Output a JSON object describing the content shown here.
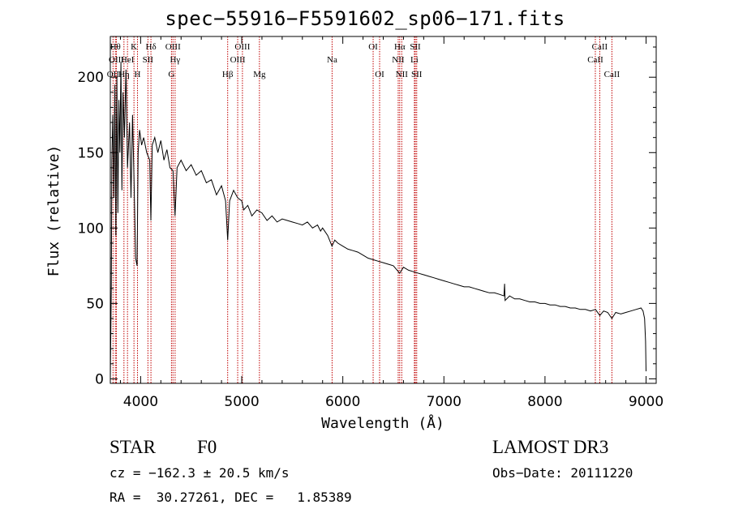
{
  "chart_data": {
    "type": "line",
    "title": "spec−55916−F5591602_sp06−171.fits",
    "xlabel": "Wavelength (Å)",
    "ylabel": "Flux (relative)",
    "xlim": [
      3700,
      9100
    ],
    "ylim": [
      -3,
      227
    ],
    "xticks": [
      4000,
      5000,
      6000,
      7000,
      8000,
      9000
    ],
    "yticks": [
      0,
      50,
      100,
      150,
      200
    ],
    "series": [
      {
        "name": "flux",
        "color": "#000000",
        "points": [
          [
            3700,
            0
          ],
          [
            3705,
            30
          ],
          [
            3710,
            60
          ],
          [
            3715,
            145
          ],
          [
            3725,
            175
          ],
          [
            3735,
            120
          ],
          [
            3745,
            195
          ],
          [
            3755,
            95
          ],
          [
            3765,
            200
          ],
          [
            3775,
            110
          ],
          [
            3785,
            185
          ],
          [
            3795,
            150
          ],
          [
            3805,
            210
          ],
          [
            3815,
            125
          ],
          [
            3825,
            190
          ],
          [
            3840,
            160
          ],
          [
            3855,
            205
          ],
          [
            3870,
            140
          ],
          [
            3890,
            170
          ],
          [
            3905,
            120
          ],
          [
            3920,
            175
          ],
          [
            3935,
            130
          ],
          [
            3950,
            80
          ],
          [
            3965,
            75
          ],
          [
            3975,
            150
          ],
          [
            3990,
            165
          ],
          [
            4010,
            155
          ],
          [
            4030,
            160
          ],
          [
            4060,
            150
          ],
          [
            4090,
            145
          ],
          [
            4101,
            105
          ],
          [
            4115,
            155
          ],
          [
            4140,
            160
          ],
          [
            4170,
            150
          ],
          [
            4200,
            158
          ],
          [
            4230,
            145
          ],
          [
            4260,
            152
          ],
          [
            4290,
            140
          ],
          [
            4320,
            138
          ],
          [
            4340,
            108
          ],
          [
            4360,
            140
          ],
          [
            4400,
            145
          ],
          [
            4450,
            138
          ],
          [
            4500,
            142
          ],
          [
            4550,
            135
          ],
          [
            4600,
            138
          ],
          [
            4650,
            130
          ],
          [
            4700,
            132
          ],
          [
            4750,
            122
          ],
          [
            4800,
            128
          ],
          [
            4840,
            118
          ],
          [
            4861,
            92
          ],
          [
            4880,
            118
          ],
          [
            4920,
            125
          ],
          [
            4960,
            120
          ],
          [
            5000,
            118
          ],
          [
            5020,
            112
          ],
          [
            5060,
            115
          ],
          [
            5100,
            108
          ],
          [
            5150,
            112
          ],
          [
            5200,
            110
          ],
          [
            5250,
            105
          ],
          [
            5300,
            108
          ],
          [
            5350,
            104
          ],
          [
            5400,
            106
          ],
          [
            5450,
            105
          ],
          [
            5500,
            104
          ],
          [
            5550,
            103
          ],
          [
            5600,
            102
          ],
          [
            5650,
            104
          ],
          [
            5700,
            100
          ],
          [
            5750,
            102
          ],
          [
            5780,
            98
          ],
          [
            5800,
            100
          ],
          [
            5850,
            95
          ],
          [
            5893,
            88
          ],
          [
            5920,
            92
          ],
          [
            5950,
            90
          ],
          [
            6000,
            88
          ],
          [
            6050,
            86
          ],
          [
            6100,
            85
          ],
          [
            6150,
            84
          ],
          [
            6200,
            82
          ],
          [
            6250,
            80
          ],
          [
            6300,
            79
          ],
          [
            6350,
            78
          ],
          [
            6400,
            77
          ],
          [
            6450,
            76
          ],
          [
            6500,
            75
          ],
          [
            6563,
            70
          ],
          [
            6600,
            74
          ],
          [
            6650,
            72
          ],
          [
            6700,
            71
          ],
          [
            6750,
            70
          ],
          [
            6800,
            69
          ],
          [
            6850,
            68
          ],
          [
            6900,
            67
          ],
          [
            6950,
            66
          ],
          [
            7000,
            65
          ],
          [
            7050,
            64
          ],
          [
            7100,
            63
          ],
          [
            7150,
            62
          ],
          [
            7200,
            61
          ],
          [
            7250,
            61
          ],
          [
            7300,
            60
          ],
          [
            7350,
            59
          ],
          [
            7400,
            58
          ],
          [
            7450,
            57
          ],
          [
            7500,
            57
          ],
          [
            7550,
            56
          ],
          [
            7594,
            55
          ],
          [
            7600,
            63
          ],
          [
            7605,
            52
          ],
          [
            7650,
            55
          ],
          [
            7700,
            53
          ],
          [
            7750,
            53
          ],
          [
            7800,
            52
          ],
          [
            7850,
            51
          ],
          [
            7900,
            51
          ],
          [
            7950,
            50
          ],
          [
            8000,
            50
          ],
          [
            8050,
            49
          ],
          [
            8100,
            49
          ],
          [
            8150,
            48
          ],
          [
            8200,
            48
          ],
          [
            8250,
            47
          ],
          [
            8300,
            47
          ],
          [
            8350,
            46
          ],
          [
            8400,
            46
          ],
          [
            8450,
            45
          ],
          [
            8500,
            46
          ],
          [
            8542,
            42
          ],
          [
            8580,
            45
          ],
          [
            8620,
            44
          ],
          [
            8662,
            40
          ],
          [
            8700,
            44
          ],
          [
            8750,
            43
          ],
          [
            8800,
            44
          ],
          [
            8850,
            45
          ],
          [
            8900,
            46
          ],
          [
            8950,
            47
          ],
          [
            8970,
            45
          ],
          [
            8985,
            40
          ],
          [
            8995,
            25
          ],
          [
            9000,
            5
          ]
        ]
      }
    ],
    "lines": [
      {
        "name": "OII",
        "wavelength": 3727,
        "row": 3
      },
      {
        "name": "Hθ",
        "wavelength": 3750,
        "row": 1
      },
      {
        "name": "OIII",
        "wavelength": 3760,
        "row": 2
      },
      {
        "name": "Hη",
        "wavelength": 3835,
        "row": 3
      },
      {
        "name": "HeI",
        "wavelength": 3870,
        "row": 2
      },
      {
        "name": "K",
        "wavelength": 3934,
        "row": 1
      },
      {
        "name": "H",
        "wavelength": 3969,
        "row": 3
      },
      {
        "name": "SII",
        "wavelength": 4072,
        "row": 2
      },
      {
        "name": "Hδ",
        "wavelength": 4102,
        "row": 1
      },
      {
        "name": "G",
        "wavelength": 4305,
        "row": 3
      },
      {
        "name": "OIII",
        "wavelength": 4320,
        "row": 1
      },
      {
        "name": "Hγ",
        "wavelength": 4341,
        "row": 2
      },
      {
        "name": "Hβ",
        "wavelength": 4861,
        "row": 3
      },
      {
        "name": "OIII",
        "wavelength": 4960,
        "row": 2
      },
      {
        "name": "OIII",
        "wavelength": 5007,
        "row": 1
      },
      {
        "name": "Mg",
        "wavelength": 5175,
        "row": 3
      },
      {
        "name": "Na",
        "wavelength": 5894,
        "row": 2
      },
      {
        "name": "OI",
        "wavelength": 6300,
        "row": 1
      },
      {
        "name": "OI",
        "wavelength": 6364,
        "row": 3
      },
      {
        "name": "NII",
        "wavelength": 6548,
        "row": 2
      },
      {
        "name": "Hα",
        "wavelength": 6563,
        "row": 1
      },
      {
        "name": "NII",
        "wavelength": 6583,
        "row": 3
      },
      {
        "name": "Li",
        "wavelength": 6708,
        "row": 2
      },
      {
        "name": "SII",
        "wavelength": 6717,
        "row": 1
      },
      {
        "name": "SII",
        "wavelength": 6731,
        "row": 3
      },
      {
        "name": "CaII",
        "wavelength": 8498,
        "row": 2
      },
      {
        "name": "CaII",
        "wavelength": 8542,
        "row": 1
      },
      {
        "name": "CaII",
        "wavelength": 8662,
        "row": 3
      }
    ],
    "line_color": "#c00000"
  },
  "info": {
    "object_class": "STAR",
    "subclass": "F0",
    "survey": "LAMOST DR3",
    "cz": "cz = −162.3 ± 20.5 km/s",
    "obs_date": "Obs−Date: 20111220",
    "coords": "RA =  30.27261, DEC =   1.85389"
  }
}
